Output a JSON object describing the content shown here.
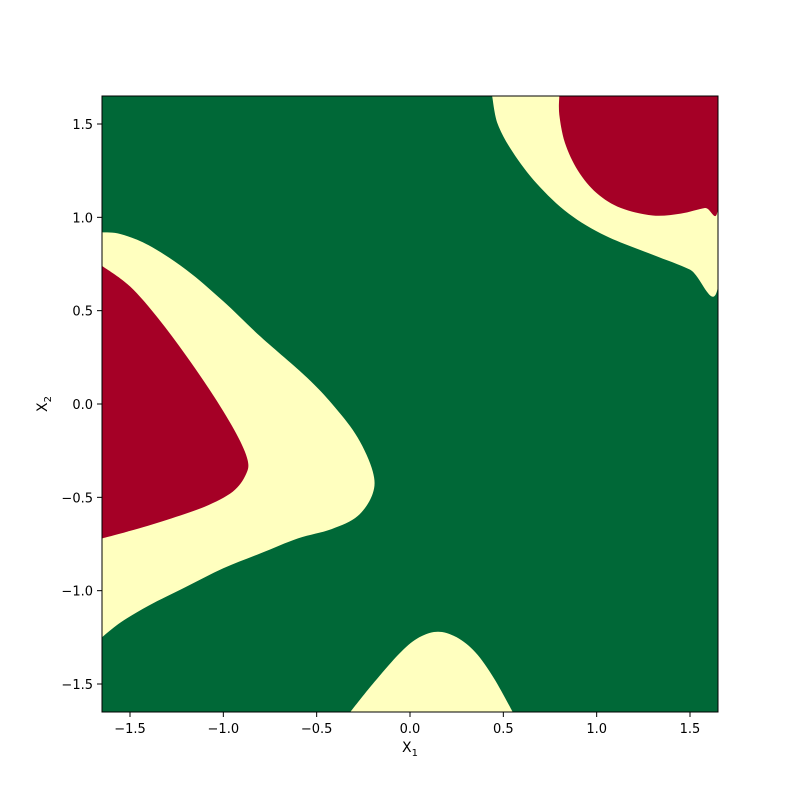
{
  "chart_data": {
    "type": "heatmap",
    "title": "",
    "xlabel": "X",
    "xlabel_sub": "1",
    "ylabel": "X",
    "ylabel_sub": "2",
    "xlim": [
      -1.65,
      1.65
    ],
    "ylim": [
      -1.65,
      1.65
    ],
    "x_ticks": [
      -1.5,
      -1.0,
      -0.5,
      0.0,
      0.5,
      1.0,
      1.5
    ],
    "y_ticks": [
      -1.5,
      -1.0,
      -0.5,
      0.0,
      0.5,
      1.0,
      1.5
    ],
    "x_tick_labels": [
      "−1.5",
      "−1.0",
      "−0.5",
      "0.0",
      "0.5",
      "1.0",
      "1.5"
    ],
    "y_tick_labels": [
      "−1.5",
      "−1.0",
      "−0.5",
      "0.0",
      "0.5",
      "1.0",
      "1.5"
    ],
    "grid": false,
    "legend": "none",
    "classes": [
      {
        "name": "background",
        "color": "#006837"
      },
      {
        "name": "band",
        "color": "#ffffbf"
      },
      {
        "name": "core",
        "color": "#a50026"
      }
    ],
    "regions": [
      {
        "name": "upper-right-band",
        "class": "band",
        "points": [
          [
            0.44,
            1.65
          ],
          [
            0.47,
            1.5
          ],
          [
            0.55,
            1.35
          ],
          [
            0.68,
            1.18
          ],
          [
            0.85,
            1.02
          ],
          [
            1.05,
            0.9
          ],
          [
            1.3,
            0.8
          ],
          [
            1.5,
            0.72
          ],
          [
            1.65,
            0.63
          ],
          [
            1.65,
            1.65
          ]
        ]
      },
      {
        "name": "upper-right-core",
        "class": "core",
        "points": [
          [
            0.8,
            1.65
          ],
          [
            0.8,
            1.55
          ],
          [
            0.83,
            1.4
          ],
          [
            0.9,
            1.25
          ],
          [
            1.0,
            1.13
          ],
          [
            1.13,
            1.05
          ],
          [
            1.3,
            1.01
          ],
          [
            1.45,
            1.02
          ],
          [
            1.58,
            1.05
          ],
          [
            1.65,
            1.05
          ],
          [
            1.65,
            1.65
          ]
        ]
      },
      {
        "name": "left-band",
        "class": "band",
        "points": [
          [
            -1.65,
            0.92
          ],
          [
            -1.55,
            0.91
          ],
          [
            -1.4,
            0.85
          ],
          [
            -1.2,
            0.72
          ],
          [
            -1.0,
            0.55
          ],
          [
            -0.8,
            0.36
          ],
          [
            -0.55,
            0.14
          ],
          [
            -0.4,
            -0.02
          ],
          [
            -0.28,
            -0.18
          ],
          [
            -0.2,
            -0.36
          ],
          [
            -0.2,
            -0.48
          ],
          [
            -0.28,
            -0.6
          ],
          [
            -0.42,
            -0.67
          ],
          [
            -0.6,
            -0.72
          ],
          [
            -0.8,
            -0.8
          ],
          [
            -1.0,
            -0.88
          ],
          [
            -1.2,
            -0.98
          ],
          [
            -1.4,
            -1.08
          ],
          [
            -1.55,
            -1.17
          ],
          [
            -1.65,
            -1.25
          ]
        ]
      },
      {
        "name": "left-core",
        "class": "core",
        "points": [
          [
            -1.65,
            0.74
          ],
          [
            -1.5,
            0.63
          ],
          [
            -1.35,
            0.46
          ],
          [
            -1.2,
            0.26
          ],
          [
            -1.05,
            0.04
          ],
          [
            -0.93,
            -0.16
          ],
          [
            -0.87,
            -0.3
          ],
          [
            -0.88,
            -0.38
          ],
          [
            -0.95,
            -0.47
          ],
          [
            -1.1,
            -0.55
          ],
          [
            -1.3,
            -0.62
          ],
          [
            -1.5,
            -0.68
          ],
          [
            -1.65,
            -0.72
          ]
        ]
      },
      {
        "name": "bottom-band",
        "class": "band",
        "points": [
          [
            -0.32,
            -1.65
          ],
          [
            -0.2,
            -1.5
          ],
          [
            -0.05,
            -1.33
          ],
          [
            0.05,
            -1.25
          ],
          [
            0.15,
            -1.22
          ],
          [
            0.25,
            -1.25
          ],
          [
            0.35,
            -1.33
          ],
          [
            0.45,
            -1.47
          ],
          [
            0.55,
            -1.65
          ]
        ]
      }
    ]
  }
}
